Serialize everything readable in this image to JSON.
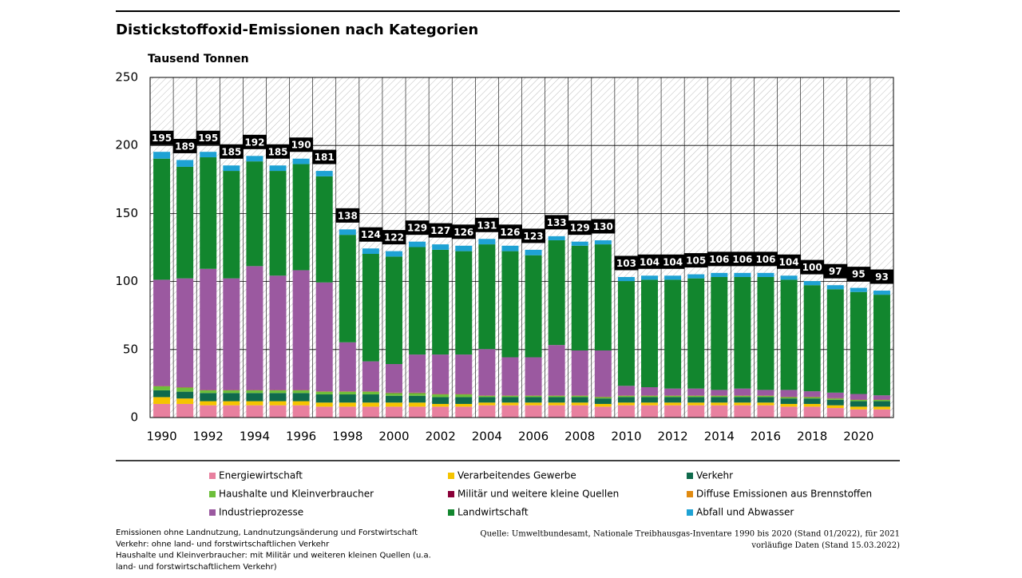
{
  "chart_data": {
    "type": "stacked_bar",
    "title": "Distickstoffoxid-Emissionen nach Kategorien",
    "y_label": "Tausend Tonnen",
    "categories": [
      "1990",
      null,
      "1992",
      null,
      "1994",
      null,
      "1996",
      null,
      "1998",
      null,
      "2000",
      null,
      "2002",
      null,
      "2004",
      null,
      "2006",
      null,
      "2008",
      null,
      "2010",
      null,
      "2012",
      null,
      "2014",
      null,
      "2016",
      null,
      "2018",
      null,
      "2020",
      null
    ],
    "series": [
      {
        "name": "Energiewirtschaft",
        "color": "#e8809f",
        "values": [
          10,
          10,
          9,
          9,
          9,
          9,
          9,
          8,
          8,
          8,
          8,
          8,
          8,
          8,
          9,
          9,
          9,
          9,
          9,
          8,
          9,
          9,
          9,
          9,
          9,
          9,
          9,
          8,
          8,
          7,
          6,
          6
        ]
      },
      {
        "name": "Verarbeitendes Gewerbe",
        "color": "#f5c400",
        "values": [
          5,
          4,
          3,
          3,
          3,
          3,
          3,
          3,
          3,
          3,
          3,
          3,
          2,
          2,
          2,
          2,
          2,
          2,
          2,
          2,
          2,
          2,
          2,
          2,
          2,
          2,
          2,
          2,
          2,
          2,
          2,
          2
        ]
      },
      {
        "name": "Verkehr",
        "color": "#0f6a4c",
        "values": [
          5,
          5,
          6,
          6,
          6,
          6,
          6,
          6,
          6,
          6,
          5,
          5,
          5,
          5,
          4,
          4,
          4,
          4,
          4,
          4,
          4,
          4,
          4,
          4,
          4,
          4,
          4,
          4,
          4,
          4,
          4,
          4
        ]
      },
      {
        "name": "Haushalte und Kleinverbraucher",
        "color": "#6dbf3a",
        "values": [
          3,
          3,
          2,
          2,
          2,
          2,
          2,
          2,
          2,
          2,
          2,
          2,
          2,
          2,
          1,
          1,
          1,
          1,
          1,
          1,
          1,
          1,
          1,
          1,
          1,
          1,
          1,
          1,
          1,
          1,
          1,
          1
        ]
      },
      {
        "name": "Militär und weitere kleine Quellen",
        "color": "#8a0038",
        "values": [
          0.2,
          0.2,
          0.2,
          0.2,
          0.2,
          0.2,
          0.2,
          0.2,
          0.2,
          0.2,
          0.2,
          0.2,
          0.2,
          0.2,
          0.2,
          0.2,
          0.2,
          0.2,
          0.2,
          0.2,
          0.2,
          0.2,
          0.2,
          0.2,
          0.2,
          0.2,
          0.2,
          0.2,
          0.2,
          0.2,
          0.2,
          0.2
        ]
      },
      {
        "name": "Diffuse Emissionen aus Brennstoffen",
        "color": "#e08a10",
        "values": [
          0.1,
          0.1,
          0.1,
          0.1,
          0.1,
          0.1,
          0.1,
          0.1,
          0.1,
          0.1,
          0.1,
          0.1,
          0.1,
          0.1,
          0.1,
          0.1,
          0.1,
          0.1,
          0.1,
          0.1,
          0.1,
          0.1,
          0.1,
          0.1,
          0.1,
          0.1,
          0.1,
          0.1,
          0.1,
          0.1,
          0.1,
          0.1
        ]
      },
      {
        "name": "Industrieprozesse",
        "color": "#9b59a0",
        "values": [
          78,
          80,
          89,
          82,
          91,
          84,
          88,
          80,
          36,
          22,
          21,
          28,
          29,
          29,
          34,
          28,
          28,
          37,
          33,
          34,
          7,
          6,
          5,
          5,
          4,
          5,
          4,
          5,
          4,
          4,
          4,
          3
        ]
      },
      {
        "name": "Landwirtschaft",
        "color": "#12862e",
        "values": [
          89,
          82,
          82,
          79,
          77,
          77,
          78,
          78,
          79,
          79,
          79,
          79,
          77,
          76,
          77,
          78,
          75,
          77,
          77,
          78,
          77,
          79,
          80,
          81,
          83,
          82,
          83,
          81,
          78,
          76,
          75,
          74
        ]
      },
      {
        "name": "Abfall und Abwasser",
        "color": "#1ea2d4",
        "values": [
          5,
          5,
          4,
          4,
          4,
          4,
          4,
          4,
          4,
          4,
          4,
          4,
          4,
          4,
          4,
          4,
          4,
          3,
          3,
          3,
          3,
          3,
          3,
          3,
          3,
          3,
          3,
          3,
          3,
          3,
          3,
          3
        ]
      }
    ],
    "totals": [
      195,
      189,
      195,
      185,
      192,
      185,
      190,
      181,
      138,
      124,
      122,
      129,
      127,
      126,
      131,
      126,
      123,
      133,
      129,
      130,
      103,
      104,
      104,
      105,
      106,
      106,
      106,
      104,
      100,
      97,
      95,
      93
    ],
    "ylim": [
      0,
      250
    ],
    "yticks": [
      0,
      50,
      100,
      150,
      200,
      250
    ],
    "grid": true,
    "legend_position": "bottom"
  },
  "notes": [
    "Emissionen ohne Landnutzung, Landnutzungsänderung und Forstwirtschaft",
    "Verkehr: ohne land- und forstwirtschaftlichen Verkehr",
    "Haushalte und Kleinverbraucher: mit Militär und weiteren kleinen Quellen (u.a.",
    "land- und forstwirtschaftlichem Verkehr)"
  ],
  "source": [
    "Quelle: Umweltbundesamt, Nationale Treibhausgas-Inventare 1990 bis 2020 (Stand 01/2022), für 2021",
    "vorläufige Daten (Stand 15.03.2022)"
  ]
}
